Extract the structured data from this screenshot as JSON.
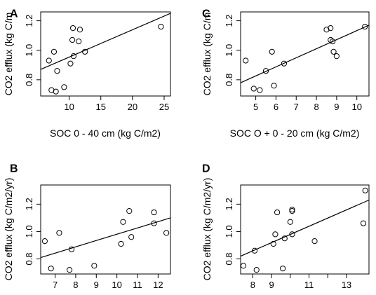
{
  "chart_data": [
    {
      "type": "scatter",
      "panel_label": "A",
      "xlabel": "SOC 0 - 40 cm (kg C/m2)",
      "ylabel": "CO2 efflux (kg C/m",
      "xlim": [
        5.5,
        26
      ],
      "ylim": [
        0.69,
        1.26
      ],
      "xticks": [
        10,
        15,
        20,
        25
      ],
      "yticks": [
        0.8,
        1.0,
        1.2
      ],
      "x": [
        6.8,
        7.2,
        7.6,
        7.9,
        8.1,
        9.2,
        10.2,
        10.5,
        10.6,
        10.7,
        11.5,
        11.7,
        12.5,
        24.5
      ],
      "y": [
        0.93,
        0.73,
        0.99,
        0.72,
        0.86,
        0.75,
        0.91,
        1.07,
        1.15,
        0.96,
        1.06,
        1.14,
        0.99,
        1.16
      ],
      "fit": [
        [
          5.5,
          0.87
        ],
        [
          26,
          1.25
        ]
      ]
    },
    {
      "type": "scatter",
      "panel_label": "C",
      "xlabel": "SOC O + 0 - 20 cm (kg C/m2)",
      "ylabel": "CO2 efflux (kg C/m",
      "xlim": [
        4.25,
        10.6
      ],
      "ylim": [
        0.69,
        1.26
      ],
      "xticks": [
        5,
        6,
        7,
        8,
        9,
        10
      ],
      "yticks": [
        0.8,
        1.0,
        1.2
      ],
      "x": [
        4.5,
        4.9,
        5.2,
        5.5,
        5.8,
        5.9,
        6.4,
        8.5,
        8.7,
        8.7,
        8.8,
        8.85,
        9.0,
        10.4
      ],
      "y": [
        0.93,
        0.74,
        0.73,
        0.86,
        0.99,
        0.76,
        0.91,
        1.14,
        1.07,
        1.15,
        1.06,
        0.99,
        0.96,
        1.16
      ],
      "fit": [
        [
          4.25,
          0.78
        ],
        [
          10.6,
          1.17
        ]
      ]
    },
    {
      "type": "scatter",
      "panel_label": "B",
      "xlabel": "",
      "ylabel": "CO2 efflux (kg C/m2/yr)",
      "xlim": [
        6.3,
        12.6
      ],
      "ylim": [
        0.69,
        1.34
      ],
      "xticks": [
        7,
        8,
        9,
        10,
        11,
        12
      ],
      "yticks": [
        0.8,
        1.0,
        1.2
      ],
      "x": [
        6.5,
        6.8,
        7.2,
        7.7,
        7.8,
        8.9,
        10.2,
        10.3,
        10.6,
        10.7,
        11.8,
        11.8,
        12.4
      ],
      "y": [
        0.93,
        0.73,
        0.99,
        0.72,
        0.87,
        0.75,
        0.91,
        1.07,
        1.15,
        0.96,
        1.14,
        1.06,
        0.99
      ],
      "fit": [
        [
          6.3,
          0.81
        ],
        [
          12.6,
          1.1
        ]
      ]
    },
    {
      "type": "scatter",
      "panel_label": "D",
      "xlabel": "",
      "ylabel": "CO2 efflux (kg C/m2/yr)",
      "xlim": [
        7.35,
        14.2
      ],
      "ylim": [
        0.69,
        1.34
      ],
      "xticks": [
        8,
        9,
        10,
        11,
        12,
        13
      ],
      "xticklabels": [
        "8",
        "9",
        "11",
        "13"
      ],
      "xticklabel_values": [
        8,
        9,
        11,
        13
      ],
      "yticks": [
        0.8,
        1.0,
        1.2
      ],
      "x": [
        7.5,
        8.1,
        8.2,
        9.1,
        9.2,
        9.3,
        9.6,
        9.7,
        10.0,
        10.1,
        10.1,
        10.1,
        11.3,
        13.9,
        14.0
      ],
      "y": [
        0.75,
        0.86,
        0.72,
        0.91,
        0.98,
        1.14,
        0.73,
        0.95,
        1.07,
        0.98,
        1.15,
        1.16,
        0.93,
        1.06,
        1.3
      ],
      "fit": [
        [
          7.35,
          0.82
        ],
        [
          14.2,
          1.23
        ]
      ]
    }
  ]
}
